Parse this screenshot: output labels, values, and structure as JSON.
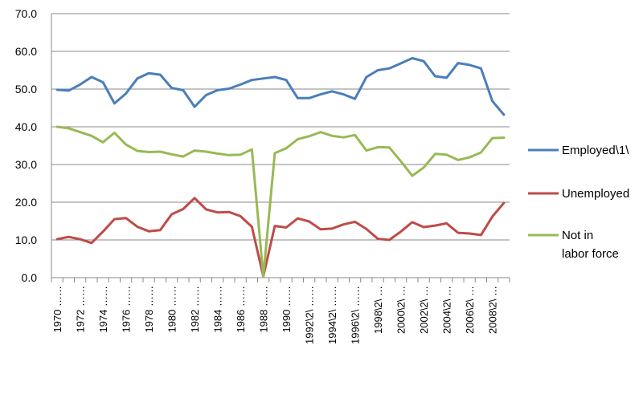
{
  "chart_data": {
    "type": "line",
    "x": [
      1970,
      1971,
      1972,
      1973,
      1974,
      1975,
      1976,
      1977,
      1978,
      1979,
      1980,
      1981,
      1982,
      1983,
      1984,
      1985,
      1986,
      1987,
      1988,
      1989,
      1990,
      1991,
      1992,
      1993,
      1994,
      1995,
      1996,
      1997,
      1998,
      1999,
      2000,
      2001,
      2002,
      2003,
      2004,
      2005,
      2006,
      2007,
      2008,
      2009
    ],
    "xtick_labels": [
      "1970 ……",
      "1972 ……",
      "1974 ……",
      "1976 ……",
      "1978 ……",
      "1980 ……",
      "1982 ……",
      "1984 ……",
      "1986 ……",
      "1988 ……",
      "1990 ……",
      "1992\\2\\ ……",
      "1994\\2\\ ……",
      "1996\\2\\ ……",
      "1998\\2\\ …",
      "2000\\2\\ …",
      "2002\\2\\ …",
      "2004\\2\\ …",
      "2006\\2\\ …",
      "2008\\2\\ …"
    ],
    "ytick_labels": [
      "0.0",
      "10.0",
      "20.0",
      "30.0",
      "40.0",
      "50.0",
      "60.0",
      "70.0"
    ],
    "ylim": [
      0,
      70
    ],
    "grid": true,
    "legend_position": "right",
    "series": [
      {
        "name": "Employed\\1\\",
        "color": "#4a7ebb",
        "values": [
          49.8,
          49.6,
          51.2,
          53.2,
          51.8,
          46.2,
          48.8,
          52.8,
          54.2,
          53.8,
          50.3,
          49.7,
          45.3,
          48.4,
          49.7,
          50.1,
          51.2,
          52.4,
          52.8,
          53.2,
          52.4,
          47.6,
          47.6,
          48.6,
          49.4,
          48.6,
          47.4,
          53.2,
          55.0,
          55.5,
          56.8,
          58.2,
          57.4,
          53.4,
          53.0,
          56.9,
          56.4,
          55.5,
          46.8,
          43.2
        ]
      },
      {
        "name": "Unemployed",
        "color": "#be4b48",
        "values": [
          10.2,
          10.8,
          10.2,
          9.2,
          12.2,
          15.5,
          15.8,
          13.5,
          12.3,
          12.6,
          16.8,
          18.2,
          21.1,
          18.1,
          17.3,
          17.4,
          16.3,
          13.5,
          0.3,
          13.7,
          13.3,
          15.7,
          14.9,
          12.8,
          13.0,
          14.1,
          14.8,
          12.9,
          10.3,
          10.0,
          12.2,
          14.7,
          13.4,
          13.8,
          14.4,
          11.9,
          11.7,
          11.3,
          16.2,
          19.8
        ]
      },
      {
        "name": "Not in labor force",
        "color": "#98b954",
        "values": [
          40.0,
          39.6,
          38.6,
          37.6,
          35.9,
          38.4,
          35.3,
          33.6,
          33.3,
          33.4,
          32.7,
          32.1,
          33.7,
          33.4,
          32.9,
          32.5,
          32.6,
          34.0,
          0.3,
          33.0,
          34.3,
          36.7,
          37.5,
          38.6,
          37.6,
          37.2,
          37.8,
          33.7,
          34.6,
          34.5,
          30.9,
          27.0,
          29.2,
          32.8,
          32.6,
          31.2,
          31.9,
          33.2,
          37.0,
          37.1
        ]
      }
    ]
  }
}
